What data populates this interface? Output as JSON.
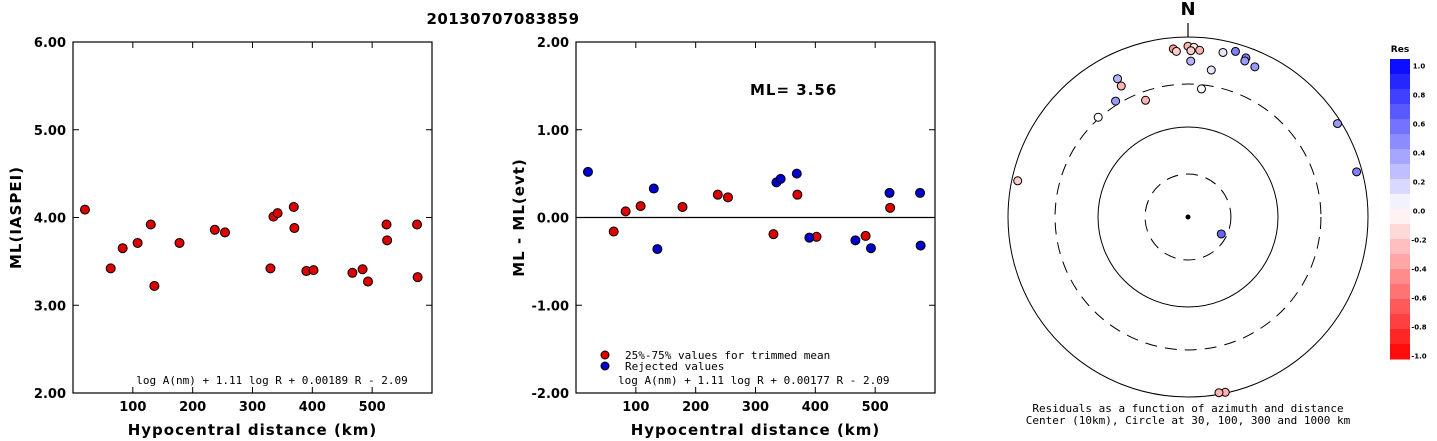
{
  "title": "20130707083859",
  "chart_data": [
    {
      "type": "scatter",
      "id": "left",
      "ylabel": "ML(IASPEI)",
      "xlabel": "Hypocentral distance (km)",
      "xlim": [
        0,
        600
      ],
      "ylim": [
        2.0,
        6.0
      ],
      "xticks": [
        100,
        200,
        300,
        400,
        500
      ],
      "yticks": [
        2.0,
        3.0,
        4.0,
        5.0,
        6.0
      ],
      "ytick_labels": [
        "2.00",
        "3.00",
        "4.00",
        "5.00",
        "6.00"
      ],
      "formula": "log A(nm) + 1.11 log R + 0.00189 R - 2.09",
      "color": "#dd0000",
      "points": [
        [
          20,
          4.09
        ],
        [
          63,
          3.42
        ],
        [
          83,
          3.65
        ],
        [
          108,
          3.71
        ],
        [
          130,
          3.92
        ],
        [
          136,
          3.22
        ],
        [
          178,
          3.71
        ],
        [
          237,
          3.86
        ],
        [
          254,
          3.83
        ],
        [
          330,
          3.42
        ],
        [
          335,
          4.01
        ],
        [
          342,
          4.05
        ],
        [
          369,
          4.12
        ],
        [
          370,
          3.88
        ],
        [
          390,
          3.39
        ],
        [
          402,
          3.4
        ],
        [
          467,
          3.37
        ],
        [
          484,
          3.41
        ],
        [
          493,
          3.27
        ],
        [
          524,
          3.92
        ],
        [
          525,
          3.74
        ],
        [
          575,
          3.92
        ],
        [
          576,
          3.32
        ]
      ]
    },
    {
      "type": "scatter",
      "id": "middle",
      "ylabel": "ML - ML(evt)",
      "xlabel": "Hypocentral distance (km)",
      "xlim": [
        0,
        600
      ],
      "ylim": [
        -2.0,
        2.0
      ],
      "xticks": [
        100,
        200,
        300,
        400,
        500
      ],
      "yticks": [
        -2.0,
        -1.0,
        0.0,
        1.0,
        2.0
      ],
      "ytick_labels": [
        "-2.00",
        "-1.00",
        "0.00",
        "1.00",
        "2.00"
      ],
      "formula": "log A(nm) + 1.11 log R + 0.00177 R - 2.09",
      "ml_text": "ML= 3.56",
      "series": [
        {
          "name": "25%-75% values for trimmed mean",
          "color": "#dd0000",
          "points": [
            [
              63,
              -0.16
            ],
            [
              83,
              0.07
            ],
            [
              108,
              0.13
            ],
            [
              178,
              0.12
            ],
            [
              237,
              0.26
            ],
            [
              254,
              0.23
            ],
            [
              330,
              -0.19
            ],
            [
              370,
              0.26
            ],
            [
              402,
              -0.22
            ],
            [
              484,
              -0.21
            ],
            [
              525,
              0.11
            ]
          ]
        },
        {
          "name": "Rejected values",
          "color": "#0000cc",
          "points": [
            [
              20,
              0.52
            ],
            [
              130,
              0.33
            ],
            [
              136,
              -0.36
            ],
            [
              335,
              0.4
            ],
            [
              342,
              0.44
            ],
            [
              369,
              0.5
            ],
            [
              390,
              -0.23
            ],
            [
              467,
              -0.26
            ],
            [
              493,
              -0.35
            ],
            [
              524,
              0.28
            ],
            [
              575,
              0.28
            ],
            [
              576,
              -0.32
            ]
          ]
        }
      ]
    },
    {
      "type": "scatter",
      "id": "polar",
      "north_label": "N",
      "caption_line1": "Residuals as a function of azimuth and distance",
      "caption_line2": "Center (10km), Circle at 30, 100, 300 and 1000 km",
      "colorbar_title": "Res",
      "colorbar_ticks": [
        "1.0",
        "0.8",
        "0.6",
        "0.4",
        "0.2",
        "0.0",
        "-0.2",
        "-0.4",
        "-0.6",
        "-0.8",
        "-1.0"
      ],
      "points": [
        {
          "az": -5,
          "dist": 750,
          "res": -0.4
        },
        {
          "az": 0,
          "dist": 790,
          "res": -0.3
        },
        {
          "az": 2,
          "dist": 770,
          "res": -0.1
        },
        {
          "az": -4,
          "dist": 700,
          "res": -0.2
        },
        {
          "az": 1,
          "dist": 705,
          "res": -0.2
        },
        {
          "az": 4,
          "dist": 720,
          "res": -0.3
        },
        {
          "az": 12,
          "dist": 740,
          "res": 0.1
        },
        {
          "az": 16,
          "dist": 820,
          "res": 0.5
        },
        {
          "az": 20,
          "dist": 760,
          "res": 0.5
        },
        {
          "az": 20,
          "dist": 700,
          "res": 0.4
        },
        {
          "az": 24,
          "dist": 670,
          "res": 0.4
        },
        {
          "az": 1,
          "dist": 540,
          "res": 0.3
        },
        {
          "az": 9,
          "dist": 450,
          "res": 0.1
        },
        {
          "az": 6,
          "dist": 270,
          "res": 0.0
        },
        {
          "az": -27,
          "dist": 530,
          "res": 0.3
        },
        {
          "az": -27,
          "dist": 430,
          "res": -0.3
        },
        {
          "az": -32,
          "dist": 330,
          "res": 0.4
        },
        {
          "az": -42,
          "dist": 310,
          "res": 0.0
        },
        {
          "az": -20,
          "dist": 240,
          "res": -0.3
        },
        {
          "az": 58,
          "dist": 910,
          "res": 0.4
        },
        {
          "az": 75,
          "dist": 870,
          "res": 0.5
        },
        {
          "az": -78,
          "dist": 860,
          "res": -0.2
        },
        {
          "az": 168,
          "dist": 980,
          "res": -0.3
        },
        {
          "az": 170,
          "dist": 960,
          "res": -0.3
        },
        {
          "az": 117,
          "dist": 26,
          "res": 0.6
        }
      ]
    }
  ]
}
